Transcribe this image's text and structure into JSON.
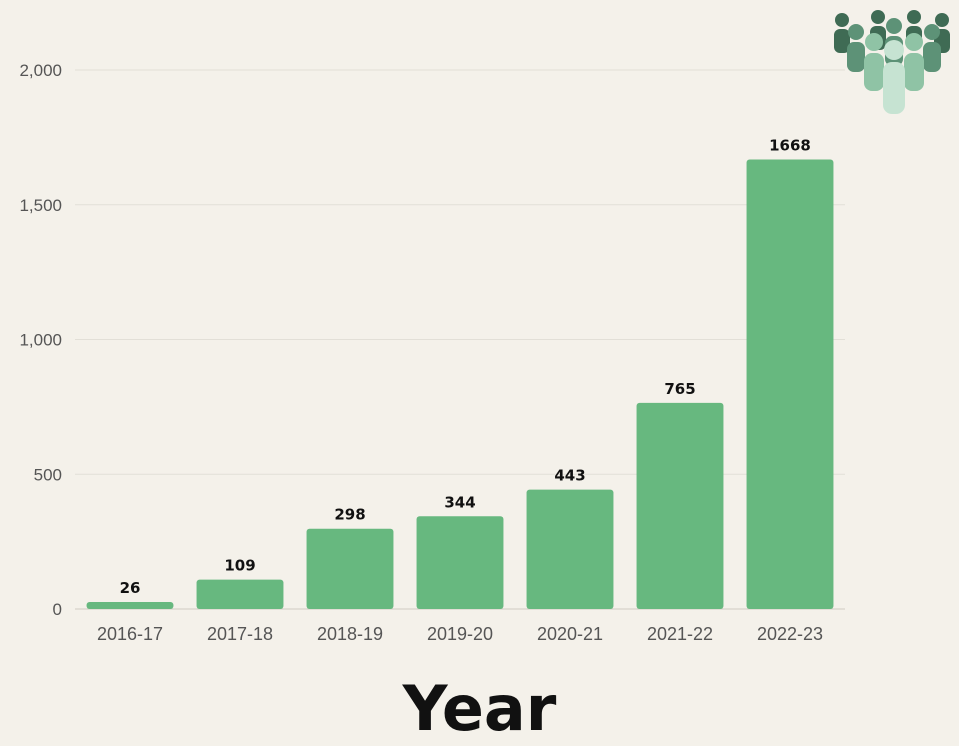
{
  "chart_data": {
    "type": "bar",
    "categories": [
      "2016-17",
      "2017-18",
      "2018-19",
      "2019-20",
      "2020-21",
      "2021-22",
      "2022-23"
    ],
    "values": [
      26,
      109,
      298,
      344,
      443,
      765,
      1668
    ],
    "data_labels": [
      "26",
      "109",
      "298",
      "344",
      "443",
      "765",
      "1668"
    ],
    "xlabel": "Year",
    "ylabel": "",
    "ylim": [
      0,
      2000
    ],
    "yticks": [
      0,
      500,
      1000,
      1500,
      2000
    ],
    "ytick_labels": [
      "0",
      "500",
      "1,000",
      "1,500",
      "2,000"
    ],
    "grid": true,
    "bar_color": "#67b87f"
  },
  "decor": {
    "icon": "people-group-icon",
    "icon_colors": [
      "#3f6b54",
      "#5d9277",
      "#8fc3a5",
      "#c6e3d2"
    ]
  }
}
